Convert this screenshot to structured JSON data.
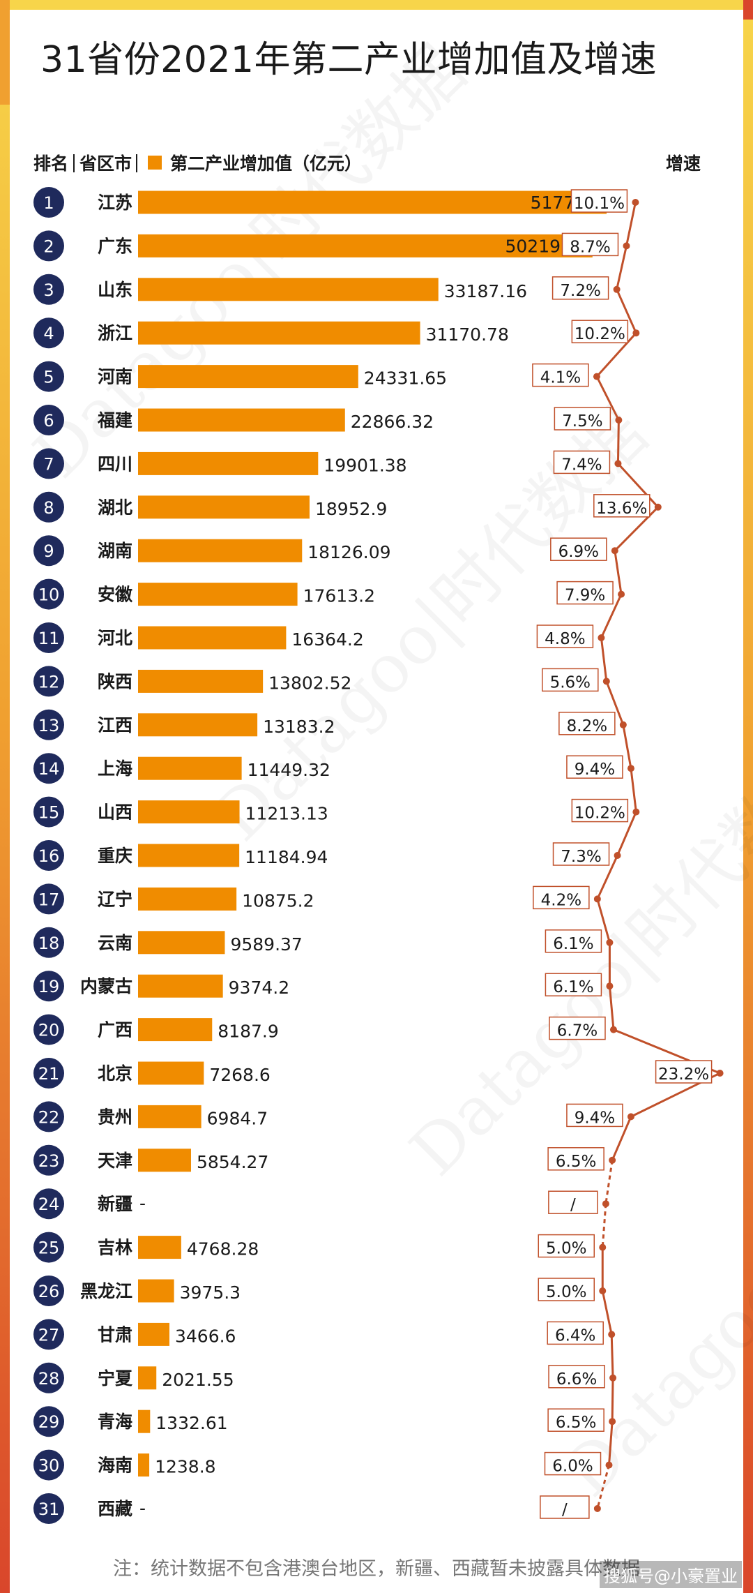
{
  "title": "31省份2021年第二产业增加值及增速",
  "header": {
    "rank_label": "排名",
    "region_label": "省区市",
    "legend_label": "第二产业增加值（亿元）",
    "growth_label": "增速"
  },
  "watermark": "Datagoo|时代数据",
  "footnote": "注：统计数据不包含港澳台地区，新疆、西藏暂未披露具体数据",
  "source_tag": "搜狐号@小豪置业",
  "colors": {
    "bar": "#F08C00",
    "badge": "#1F2A5C",
    "growth_line": "#C0502A",
    "frame_yellow": "#F7D54A",
    "frame_orange": "#F0A030",
    "frame_red": "#D9462B"
  },
  "chart_data": {
    "type": "bar",
    "orientation": "horizontal",
    "categories": [
      "江苏",
      "广东",
      "山东",
      "浙江",
      "河南",
      "福建",
      "四川",
      "湖北",
      "湖南",
      "安徽",
      "河北",
      "陕西",
      "江西",
      "上海",
      "山西",
      "重庆",
      "辽宁",
      "云南",
      "内蒙古",
      "广西",
      "北京",
      "贵州",
      "天津",
      "新疆",
      "吉林",
      "黑龙江",
      "甘肃",
      "宁夏",
      "青海",
      "海南",
      "西藏"
    ],
    "ranks": [
      "1",
      "2",
      "3",
      "4",
      "5",
      "6",
      "7",
      "8",
      "9",
      "10",
      "11",
      "12",
      "13",
      "14",
      "15",
      "16",
      "17",
      "18",
      "19",
      "20",
      "21",
      "22",
      "23",
      "24",
      "25",
      "26",
      "27",
      "28",
      "29",
      "30",
      "31"
    ],
    "series": [
      {
        "name": "第二产业增加值（亿元）",
        "values": [
          51775.4,
          50219.19,
          33187.16,
          31170.78,
          24331.65,
          22866.32,
          19901.38,
          18952.9,
          18126.09,
          17613.2,
          16364.2,
          13802.52,
          13183.2,
          11449.32,
          11213.13,
          11184.94,
          10875.2,
          9589.37,
          9374.2,
          8187.9,
          7268.6,
          6984.7,
          5854.27,
          null,
          4768.28,
          3975.3,
          3466.6,
          2021.55,
          1332.61,
          1238.8,
          null
        ],
        "labels": [
          "51775.4",
          "50219.19",
          "33187.16",
          "31170.78",
          "24331.65",
          "22866.32",
          "19901.38",
          "18952.9",
          "18126.09",
          "17613.2",
          "16364.2",
          "13802.52",
          "13183.2",
          "11449.32",
          "11213.13",
          "11184.94",
          "10875.2",
          "9589.37",
          "9374.2",
          "8187.9",
          "7268.6",
          "6984.7",
          "5854.27",
          "-",
          "4768.28",
          "3975.3",
          "3466.6",
          "2021.55",
          "1332.61",
          "1238.8",
          "-"
        ]
      },
      {
        "name": "增速",
        "values": [
          10.1,
          8.7,
          7.2,
          10.2,
          4.1,
          7.5,
          7.4,
          13.6,
          6.9,
          7.9,
          4.8,
          5.6,
          8.2,
          9.4,
          10.2,
          7.3,
          4.2,
          6.1,
          6.1,
          6.7,
          23.2,
          9.4,
          6.5,
          null,
          5.0,
          5.0,
          6.4,
          6.6,
          6.5,
          6.0,
          null
        ],
        "labels": [
          "10.1%",
          "8.7%",
          "7.2%",
          "10.2%",
          "4.1%",
          "7.5%",
          "7.4%",
          "13.6%",
          "6.9%",
          "7.9%",
          "4.8%",
          "5.6%",
          "8.2%",
          "9.4%",
          "10.2%",
          "7.3%",
          "4.2%",
          "6.1%",
          "6.1%",
          "6.7%",
          "23.2%",
          "9.4%",
          "6.5%",
          "/",
          "5.0%",
          "5.0%",
          "6.4%",
          "6.6%",
          "6.5%",
          "6.0%",
          "/"
        ]
      }
    ],
    "xlim": [
      0,
      60000
    ]
  }
}
